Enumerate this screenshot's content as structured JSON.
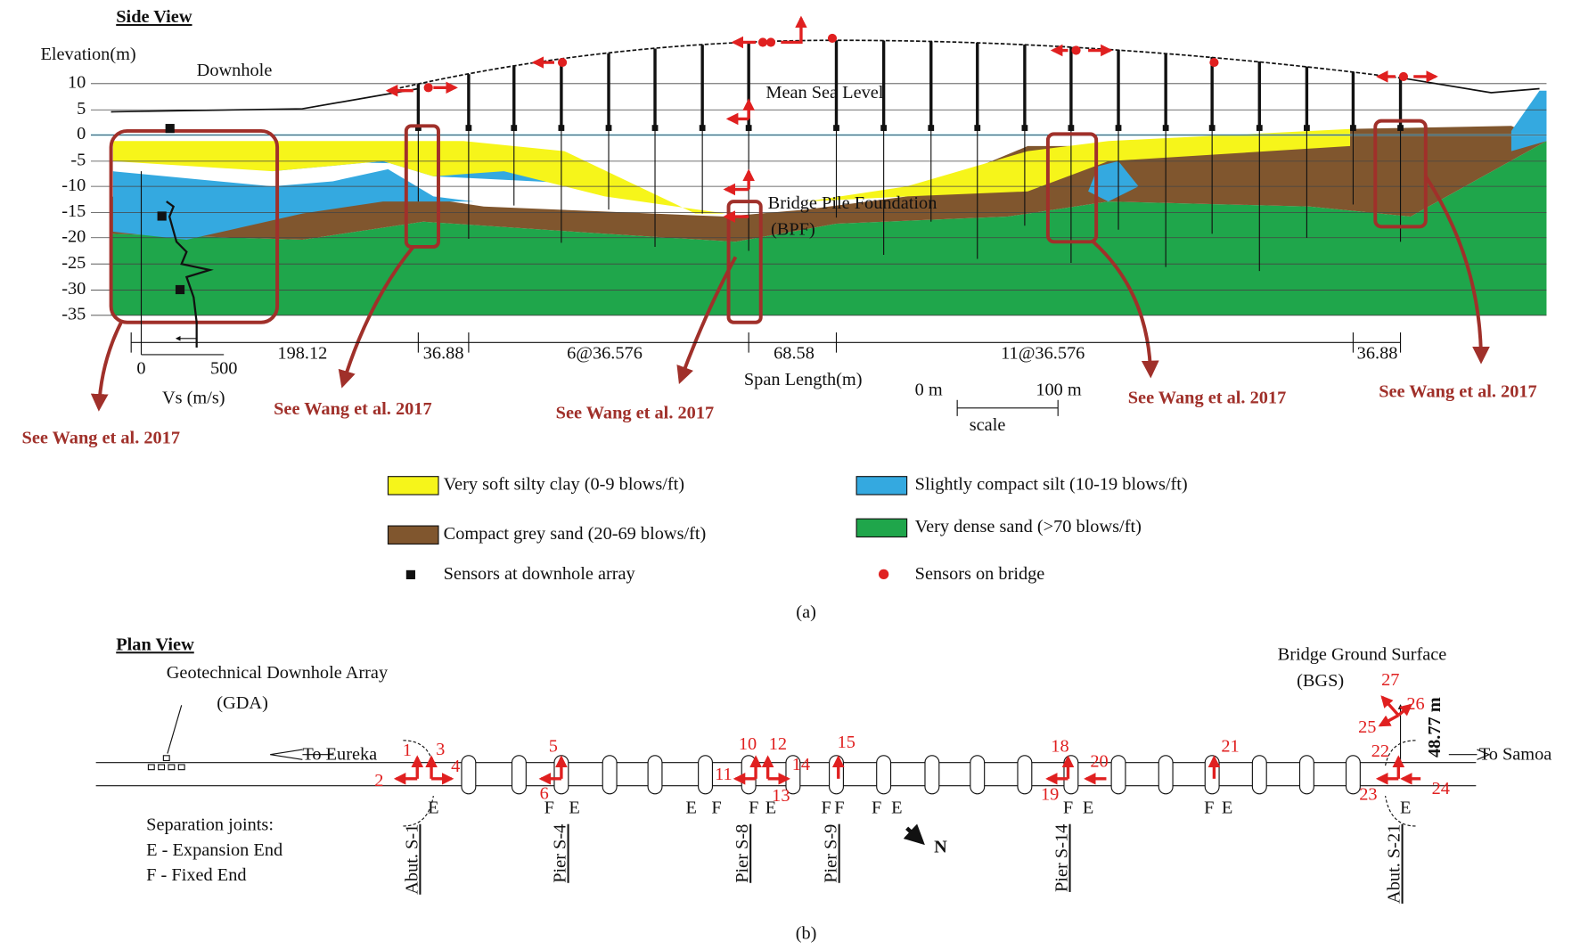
{
  "side_view": {
    "title": "Side View",
    "elevation_label": "Elevation(m)",
    "elevation_ticks": [
      "10",
      "5",
      "0",
      "-5",
      "-10",
      "-15",
      "-20",
      "-25",
      "-30",
      "-35"
    ],
    "downhole": "Downhole",
    "mean_sea_level": "Mean Sea Level",
    "bpf": [
      "Bridge Pile Foundation",
      "(BPF)"
    ],
    "vs_ticks": [
      "0",
      "500"
    ],
    "vs_label": "Vs (m/s)",
    "spans": [
      "198.12",
      "36.88",
      "6@36.576",
      "68.58",
      "11@36.576",
      "36.88"
    ],
    "span_label": "Span Length(m)",
    "scale": {
      "start": "0 m",
      "end": "100 m",
      "label": "scale"
    },
    "references": [
      "See Wang et al. 2017",
      "See Wang et al. 2017",
      "See Wang et al. 2017",
      "See Wang et al. 2017",
      "See Wang et al. 2017"
    ],
    "caption": "(a)"
  },
  "legend": [
    {
      "label": "Very soft silty clay (0-9 blows/ft)"
    },
    {
      "label": "Slightly compact silt (10-19 blows/ft)"
    },
    {
      "label": "Compact grey sand (20-69 blows/ft)"
    },
    {
      "label": "Very dense sand (>70 blows/ft)"
    },
    {
      "label": "Sensors at downhole array"
    },
    {
      "label": "Sensors on bridge"
    }
  ],
  "plan_view": {
    "title": "Plan View",
    "gda": [
      "Geotechnical Downhole Array",
      "(GDA)"
    ],
    "bgs": [
      "Bridge Ground Surface",
      "(BGS)"
    ],
    "distance": "48.77 m",
    "to_eureka": "To Eureka",
    "to_samoa": "To Samoa",
    "sensors": [
      "1",
      "2",
      "3",
      "4",
      "5",
      "6",
      "10",
      "11",
      "12",
      "13",
      "14",
      "15",
      "18",
      "19",
      "20",
      "21",
      "22",
      "23",
      "24",
      "25",
      "26",
      "27"
    ],
    "joints": [
      "E",
      "F",
      "E",
      "E",
      "F",
      "F",
      "E",
      "F",
      "F",
      "F",
      "E",
      "F",
      "E",
      "F",
      "E",
      "E"
    ],
    "supports": [
      "Abut. S-1",
      "Pier S-4",
      "Pier S-8",
      "Pier S-9",
      "Pier S-14",
      "Abut. S-21"
    ],
    "north": "N",
    "separation_joints": [
      "Separation joints:",
      "E - Expansion End",
      "F - Fixed End"
    ],
    "caption": "(b)"
  }
}
